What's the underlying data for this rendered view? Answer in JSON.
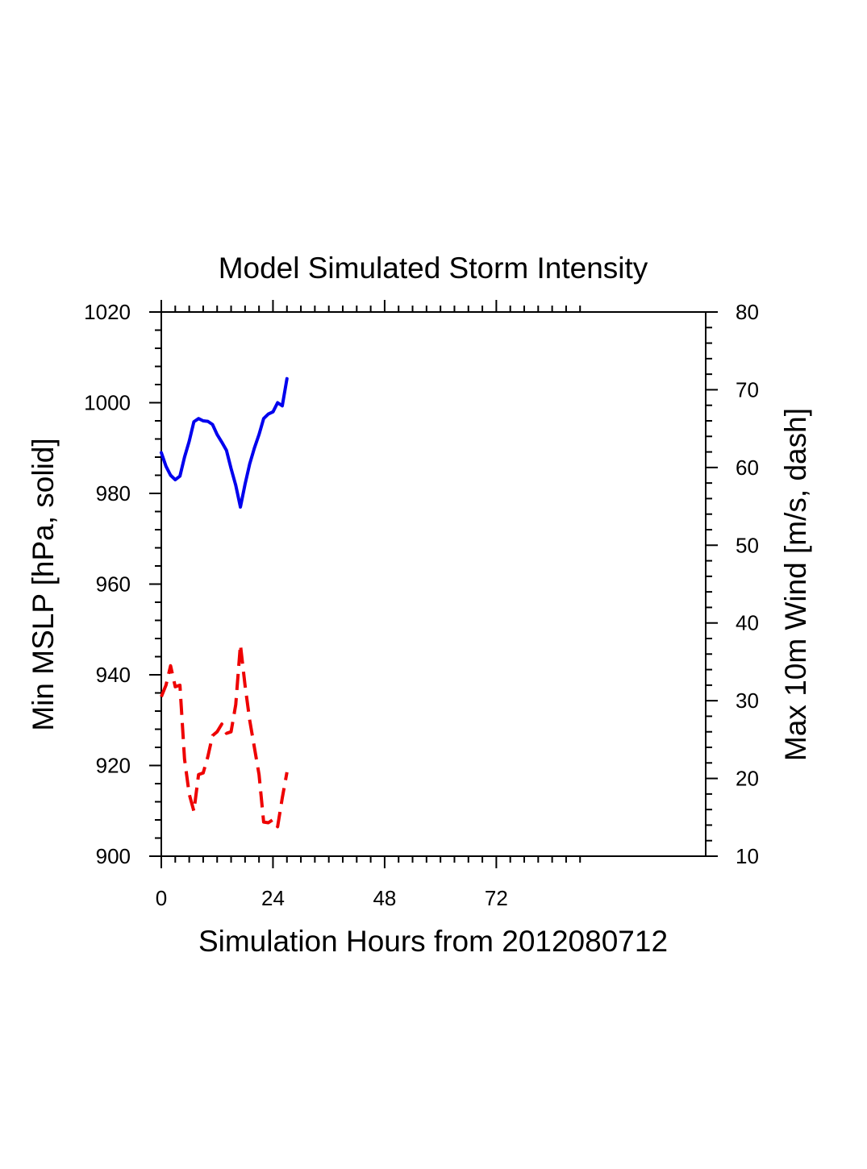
{
  "chart_data": {
    "type": "line",
    "title": "Model Simulated Storm Intensity",
    "xlabel": "Simulation Hours from 2012080712",
    "ylabel_left": "Min MSLP  [hPa, solid]",
    "ylabel_right": "Max 10m Wind  [m/s, dash]",
    "xlim": [
      0,
      117
    ],
    "ylim_left": [
      900,
      1020
    ],
    "ylim_right": [
      10,
      80
    ],
    "x_ticks": [
      0,
      24,
      48,
      72
    ],
    "x_tick_labels": [
      "0",
      "24",
      "48",
      "72"
    ],
    "x_minor_max": 90,
    "y_left_ticks": [
      900,
      920,
      940,
      960,
      980,
      1000,
      1020
    ],
    "y_left_tick_labels": [
      "900",
      "920",
      "940",
      "960",
      "980",
      "1000",
      "1020"
    ],
    "y_right_ticks": [
      10,
      20,
      30,
      40,
      50,
      60,
      70,
      80
    ],
    "y_right_tick_labels": [
      "10",
      "20",
      "30",
      "40",
      "50",
      "60",
      "70",
      "80"
    ],
    "grid": false,
    "series": [
      {
        "name": "Min MSLP",
        "axis": "left",
        "style": "solid",
        "color": "#0000ee",
        "x": [
          0,
          1,
          2,
          3,
          4,
          5,
          6,
          7,
          8,
          9,
          10,
          11,
          12,
          13,
          14,
          15,
          16,
          17,
          18,
          19,
          20,
          21,
          22,
          23,
          24,
          25,
          26,
          27
        ],
        "values": [
          989.0,
          986.0,
          984.0,
          983.0,
          983.8,
          988.0,
          991.5,
          995.8,
          996.5,
          996.0,
          995.9,
          995.2,
          993.0,
          991.3,
          989.5,
          985.5,
          981.8,
          977.0,
          982.0,
          986.5,
          990.0,
          993.0,
          996.5,
          997.5,
          998.0,
          1000.0,
          999.3,
          1005.3
        ]
      },
      {
        "name": "Max 10m Wind",
        "axis": "right",
        "style": "dash",
        "color": "#ee0000",
        "x": [
          0,
          1,
          2,
          3,
          4,
          5,
          6,
          7,
          8,
          9,
          10,
          11,
          12,
          13,
          14,
          15,
          16,
          17,
          18,
          19,
          20,
          21,
          22,
          23,
          24,
          25,
          26,
          27
        ],
        "values": [
          30.5,
          32.0,
          34.5,
          31.8,
          32.0,
          22.5,
          18.0,
          15.8,
          20.5,
          20.7,
          22.8,
          25.5,
          26.0,
          27.0,
          25.8,
          26.0,
          29.5,
          37.2,
          32.0,
          27.5,
          24.0,
          20.5,
          14.4,
          14.3,
          14.7,
          13.8,
          17.5,
          20.8
        ]
      }
    ]
  }
}
